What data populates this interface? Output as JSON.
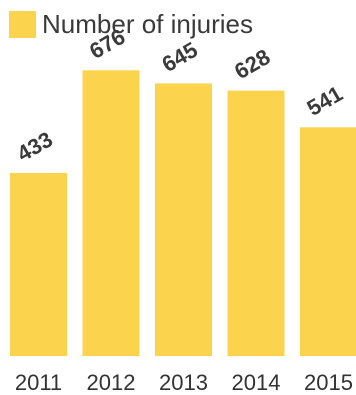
{
  "legend": {
    "label": "Number of injuries",
    "color": "#FCD34D"
  },
  "colors": {
    "bar": "#FCD34D",
    "value_label": "#3a3a3a",
    "tick_label": "#333333"
  },
  "chart_data": {
    "type": "bar",
    "categories": [
      "2011",
      "2012",
      "2013",
      "2014",
      "2015"
    ],
    "series": [
      {
        "name": "Number of injuries",
        "values": [
          433,
          676,
          645,
          628,
          541
        ]
      }
    ],
    "title": "",
    "xlabel": "",
    "ylabel": "",
    "ylim": [
      0,
      750
    ],
    "grid": false,
    "legend_position": "top-left",
    "data_labels": true,
    "data_label_rotation_deg": -30
  }
}
